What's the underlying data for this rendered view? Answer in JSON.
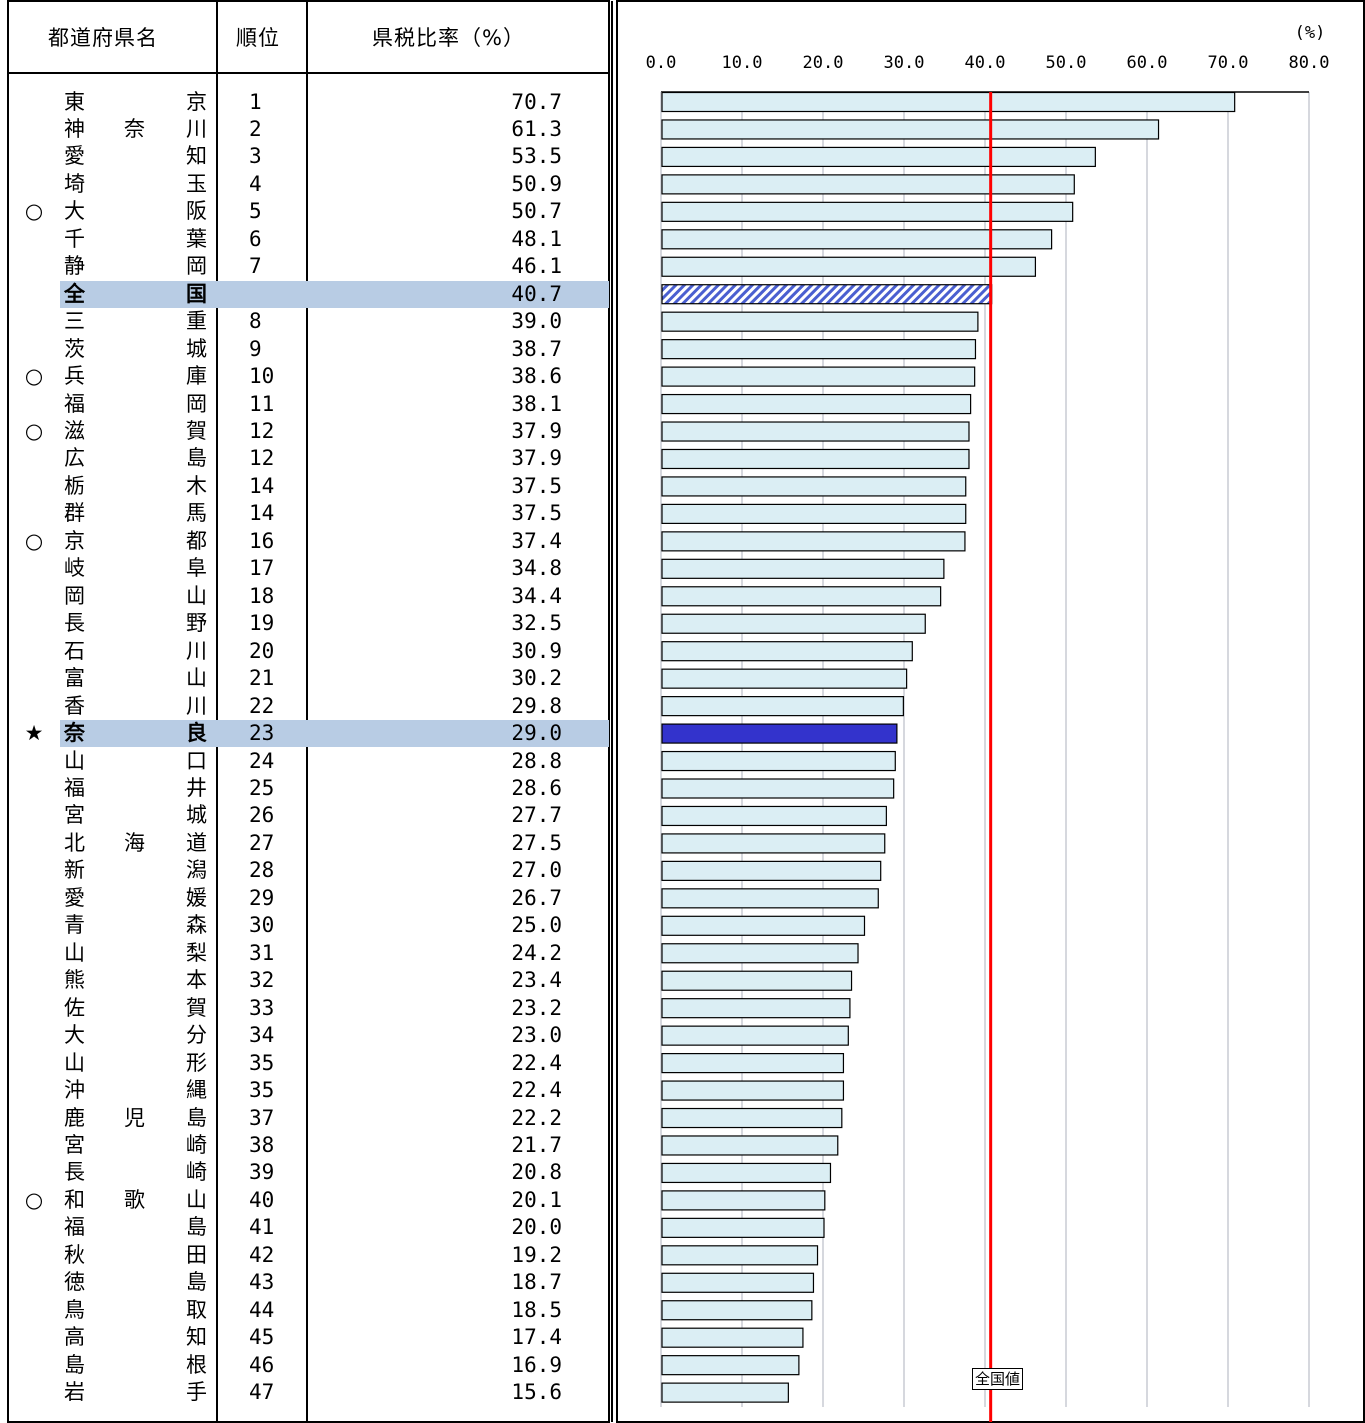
{
  "table": {
    "headers": {
      "name": "都道府県名",
      "rank": "順位",
      "ratio": "県税比率（%）"
    }
  },
  "chart_data": {
    "type": "bar",
    "orientation": "horizontal",
    "unit": "(%)",
    "xlim": [
      0,
      80
    ],
    "ticks": [
      "0.0",
      "10.0",
      "20.0",
      "30.0",
      "40.0",
      "50.0",
      "60.0",
      "70.0",
      "80.0"
    ],
    "grid": true,
    "national_label": "全国値",
    "national_value": 40.7,
    "colors": {
      "bar": "#dbeef4",
      "national": "#4a5fd0",
      "nara": "#3333cc",
      "line": "#ff0000",
      "highlight": "#b8cce4"
    },
    "rows": [
      {
        "mark": "",
        "name": [
          "東",
          "",
          "京"
        ],
        "rank": "1",
        "value": 70.7,
        "value_text": "70.7"
      },
      {
        "mark": "",
        "name": [
          "神",
          "奈",
          "川"
        ],
        "rank": "2",
        "value": 61.3,
        "value_text": "61.3"
      },
      {
        "mark": "",
        "name": [
          "愛",
          "",
          "知"
        ],
        "rank": "3",
        "value": 53.5,
        "value_text": "53.5"
      },
      {
        "mark": "",
        "name": [
          "埼",
          "",
          "玉"
        ],
        "rank": "4",
        "value": 50.9,
        "value_text": "50.9"
      },
      {
        "mark": "○",
        "name": [
          "大",
          "",
          "阪"
        ],
        "rank": "5",
        "value": 50.7,
        "value_text": "50.7"
      },
      {
        "mark": "",
        "name": [
          "千",
          "",
          "葉"
        ],
        "rank": "6",
        "value": 48.1,
        "value_text": "48.1"
      },
      {
        "mark": "",
        "name": [
          "静",
          "",
          "岡"
        ],
        "rank": "7",
        "value": 46.1,
        "value_text": "46.1"
      },
      {
        "mark": "",
        "name": [
          "全",
          "",
          "国"
        ],
        "rank": "",
        "value": 40.7,
        "value_text": "40.7",
        "kind": "national"
      },
      {
        "mark": "",
        "name": [
          "三",
          "",
          "重"
        ],
        "rank": "8",
        "value": 39.0,
        "value_text": "39.0"
      },
      {
        "mark": "",
        "name": [
          "茨",
          "",
          "城"
        ],
        "rank": "9",
        "value": 38.7,
        "value_text": "38.7"
      },
      {
        "mark": "○",
        "name": [
          "兵",
          "",
          "庫"
        ],
        "rank": "10",
        "value": 38.6,
        "value_text": "38.6"
      },
      {
        "mark": "",
        "name": [
          "福",
          "",
          "岡"
        ],
        "rank": "11",
        "value": 38.1,
        "value_text": "38.1"
      },
      {
        "mark": "○",
        "name": [
          "滋",
          "",
          "賀"
        ],
        "rank": "12",
        "value": 37.9,
        "value_text": "37.9"
      },
      {
        "mark": "",
        "name": [
          "広",
          "",
          "島"
        ],
        "rank": "12",
        "value": 37.9,
        "value_text": "37.9"
      },
      {
        "mark": "",
        "name": [
          "栃",
          "",
          "木"
        ],
        "rank": "14",
        "value": 37.5,
        "value_text": "37.5"
      },
      {
        "mark": "",
        "name": [
          "群",
          "",
          "馬"
        ],
        "rank": "14",
        "value": 37.5,
        "value_text": "37.5"
      },
      {
        "mark": "○",
        "name": [
          "京",
          "",
          "都"
        ],
        "rank": "16",
        "value": 37.4,
        "value_text": "37.4"
      },
      {
        "mark": "",
        "name": [
          "岐",
          "",
          "阜"
        ],
        "rank": "17",
        "value": 34.8,
        "value_text": "34.8"
      },
      {
        "mark": "",
        "name": [
          "岡",
          "",
          "山"
        ],
        "rank": "18",
        "value": 34.4,
        "value_text": "34.4"
      },
      {
        "mark": "",
        "name": [
          "長",
          "",
          "野"
        ],
        "rank": "19",
        "value": 32.5,
        "value_text": "32.5"
      },
      {
        "mark": "",
        "name": [
          "石",
          "",
          "川"
        ],
        "rank": "20",
        "value": 30.9,
        "value_text": "30.9"
      },
      {
        "mark": "",
        "name": [
          "富",
          "",
          "山"
        ],
        "rank": "21",
        "value": 30.2,
        "value_text": "30.2"
      },
      {
        "mark": "",
        "name": [
          "香",
          "",
          "川"
        ],
        "rank": "22",
        "value": 29.8,
        "value_text": "29.8"
      },
      {
        "mark": "★",
        "name": [
          "奈",
          "",
          "良"
        ],
        "rank": "23",
        "value": 29.0,
        "value_text": "29.0",
        "kind": "nara"
      },
      {
        "mark": "",
        "name": [
          "山",
          "",
          "口"
        ],
        "rank": "24",
        "value": 28.8,
        "value_text": "28.8"
      },
      {
        "mark": "",
        "name": [
          "福",
          "",
          "井"
        ],
        "rank": "25",
        "value": 28.6,
        "value_text": "28.6"
      },
      {
        "mark": "",
        "name": [
          "宮",
          "",
          "城"
        ],
        "rank": "26",
        "value": 27.7,
        "value_text": "27.7"
      },
      {
        "mark": "",
        "name": [
          "北",
          "海",
          "道"
        ],
        "rank": "27",
        "value": 27.5,
        "value_text": "27.5"
      },
      {
        "mark": "",
        "name": [
          "新",
          "",
          "潟"
        ],
        "rank": "28",
        "value": 27.0,
        "value_text": "27.0"
      },
      {
        "mark": "",
        "name": [
          "愛",
          "",
          "媛"
        ],
        "rank": "29",
        "value": 26.7,
        "value_text": "26.7"
      },
      {
        "mark": "",
        "name": [
          "青",
          "",
          "森"
        ],
        "rank": "30",
        "value": 25.0,
        "value_text": "25.0"
      },
      {
        "mark": "",
        "name": [
          "山",
          "",
          "梨"
        ],
        "rank": "31",
        "value": 24.2,
        "value_text": "24.2"
      },
      {
        "mark": "",
        "name": [
          "熊",
          "",
          "本"
        ],
        "rank": "32",
        "value": 23.4,
        "value_text": "23.4"
      },
      {
        "mark": "",
        "name": [
          "佐",
          "",
          "賀"
        ],
        "rank": "33",
        "value": 23.2,
        "value_text": "23.2"
      },
      {
        "mark": "",
        "name": [
          "大",
          "",
          "分"
        ],
        "rank": "34",
        "value": 23.0,
        "value_text": "23.0"
      },
      {
        "mark": "",
        "name": [
          "山",
          "",
          "形"
        ],
        "rank": "35",
        "value": 22.4,
        "value_text": "22.4"
      },
      {
        "mark": "",
        "name": [
          "沖",
          "",
          "縄"
        ],
        "rank": "35",
        "value": 22.4,
        "value_text": "22.4"
      },
      {
        "mark": "",
        "name": [
          "鹿",
          "児",
          "島"
        ],
        "rank": "37",
        "value": 22.2,
        "value_text": "22.2"
      },
      {
        "mark": "",
        "name": [
          "宮",
          "",
          "崎"
        ],
        "rank": "38",
        "value": 21.7,
        "value_text": "21.7"
      },
      {
        "mark": "",
        "name": [
          "長",
          "",
          "崎"
        ],
        "rank": "39",
        "value": 20.8,
        "value_text": "20.8"
      },
      {
        "mark": "○",
        "name": [
          "和",
          "歌",
          "山"
        ],
        "rank": "40",
        "value": 20.1,
        "value_text": "20.1"
      },
      {
        "mark": "",
        "name": [
          "福",
          "",
          "島"
        ],
        "rank": "41",
        "value": 20.0,
        "value_text": "20.0"
      },
      {
        "mark": "",
        "name": [
          "秋",
          "",
          "田"
        ],
        "rank": "42",
        "value": 19.2,
        "value_text": "19.2"
      },
      {
        "mark": "",
        "name": [
          "徳",
          "",
          "島"
        ],
        "rank": "43",
        "value": 18.7,
        "value_text": "18.7"
      },
      {
        "mark": "",
        "name": [
          "鳥",
          "",
          "取"
        ],
        "rank": "44",
        "value": 18.5,
        "value_text": "18.5"
      },
      {
        "mark": "",
        "name": [
          "高",
          "",
          "知"
        ],
        "rank": "45",
        "value": 17.4,
        "value_text": "17.4"
      },
      {
        "mark": "",
        "name": [
          "島",
          "",
          "根"
        ],
        "rank": "46",
        "value": 16.9,
        "value_text": "16.9"
      },
      {
        "mark": "",
        "name": [
          "岩",
          "",
          "手"
        ],
        "rank": "47",
        "value": 15.6,
        "value_text": "15.6"
      }
    ]
  }
}
